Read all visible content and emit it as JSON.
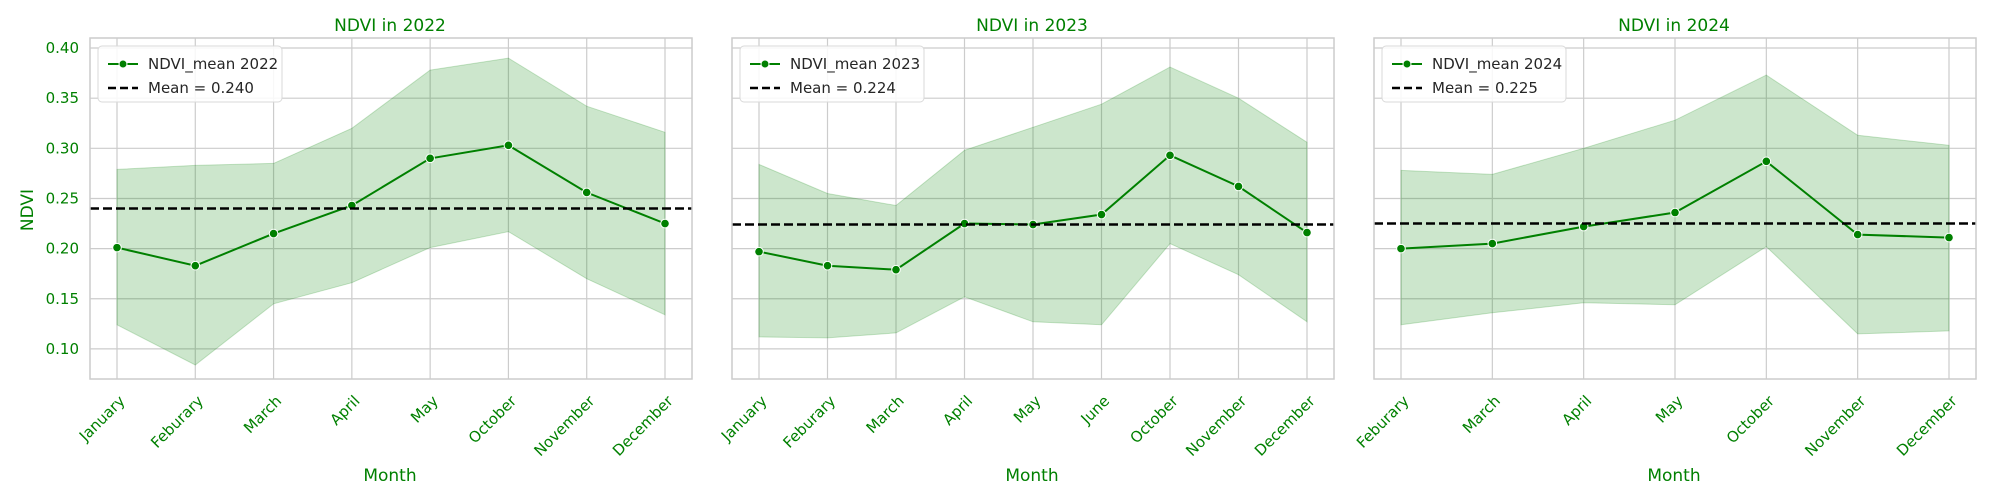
{
  "colors": {
    "series": "#008000",
    "band": "#008000",
    "mean_line": "#000000",
    "grid": "#cccccc",
    "frame": "#cccccc",
    "text": "#008000"
  },
  "chart_data": [
    {
      "type": "line",
      "title": "NDVI in 2022",
      "xlabel": "Month",
      "ylabel": "NDVI",
      "ylim": [
        0.07,
        0.41
      ],
      "yticks": [
        "0.10",
        "0.15",
        "0.20",
        "0.25",
        "0.30",
        "0.35",
        "0.40"
      ],
      "categories": [
        "January",
        "Feburary",
        "March",
        "April",
        "May",
        "October",
        "November",
        "December"
      ],
      "series": [
        {
          "name": "NDVI_mean 2022",
          "values": [
            0.201,
            0.183,
            0.215,
            0.243,
            0.29,
            0.303,
            0.256,
            0.225
          ],
          "band_upper": [
            0.279,
            0.283,
            0.285,
            0.32,
            0.378,
            0.39,
            0.342,
            0.316
          ],
          "band_lower": [
            0.124,
            0.084,
            0.145,
            0.166,
            0.201,
            0.217,
            0.17,
            0.134
          ]
        }
      ],
      "mean": {
        "label": "Mean = 0.240",
        "value": 0.24
      },
      "grid": true,
      "legend": "top-left"
    },
    {
      "type": "line",
      "title": "NDVI in 2023",
      "xlabel": "Month",
      "ylabel": "",
      "ylim": [
        0.07,
        0.41
      ],
      "categories": [
        "January",
        "Feburary",
        "March",
        "April",
        "May",
        "June",
        "October",
        "November",
        "December"
      ],
      "series": [
        {
          "name": "NDVI_mean 2023",
          "values": [
            0.197,
            0.183,
            0.179,
            0.225,
            0.224,
            0.234,
            0.293,
            0.262,
            0.216
          ],
          "band_upper": [
            0.284,
            0.255,
            0.243,
            0.298,
            0.321,
            0.344,
            0.381,
            0.35,
            0.306
          ],
          "band_lower": [
            0.112,
            0.111,
            0.116,
            0.152,
            0.127,
            0.124,
            0.205,
            0.174,
            0.127
          ]
        }
      ],
      "mean": {
        "label": "Mean = 0.224",
        "value": 0.224
      },
      "grid": true,
      "legend": "top-left"
    },
    {
      "type": "line",
      "title": "NDVI in 2024",
      "xlabel": "Month",
      "ylabel": "",
      "ylim": [
        0.07,
        0.41
      ],
      "categories": [
        "Feburary",
        "March",
        "April",
        "May",
        "October",
        "November",
        "December"
      ],
      "series": [
        {
          "name": "NDVI_mean 2024",
          "values": [
            0.2,
            0.205,
            0.222,
            0.236,
            0.287,
            0.214,
            0.211
          ],
          "band_upper": [
            0.278,
            0.274,
            0.3,
            0.328,
            0.373,
            0.313,
            0.303
          ],
          "band_lower": [
            0.124,
            0.136,
            0.146,
            0.144,
            0.202,
            0.115,
            0.118
          ]
        }
      ],
      "mean": {
        "label": "Mean = 0.225",
        "value": 0.225
      },
      "grid": true,
      "legend": "top-left"
    }
  ]
}
